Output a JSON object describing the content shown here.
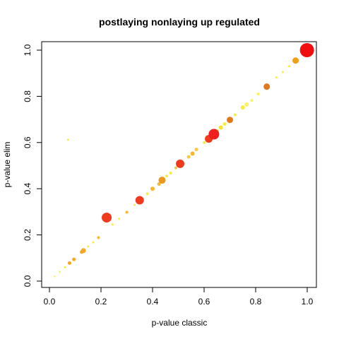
{
  "chart_data": {
    "type": "scatter",
    "title": "postlaying nonlaying up regulated",
    "xlabel": "p-value classic",
    "ylabel": "p-value elim",
    "xlim": [
      0,
      1
    ],
    "ylim": [
      0,
      1
    ],
    "xticks": [
      "0.0",
      "0.2",
      "0.4",
      "0.6",
      "0.8",
      "1.0"
    ],
    "yticks": [
      "0.0",
      "0.2",
      "0.4",
      "0.6",
      "0.8",
      "1.0"
    ],
    "grid": false,
    "legend": "none",
    "colors": {
      "red": "#f5281e",
      "red_orange": "#f04a1a",
      "orange": "#f5a623",
      "dark_orange": "#e88a10",
      "light_orange": "#f7c844",
      "yellow": "#f8ec3c",
      "pale_yellow": "#f9f25a"
    },
    "points": [
      {
        "x": 0.999,
        "y": 1.0,
        "size": 10,
        "color": "#f20e0e"
      },
      {
        "x": 0.955,
        "y": 0.955,
        "size": 4.5,
        "color": "#f0a018"
      },
      {
        "x": 0.93,
        "y": 0.93,
        "size": 1.5,
        "color": "#f8ec3c"
      },
      {
        "x": 0.905,
        "y": 0.905,
        "size": 1.5,
        "color": "#f8ec3c"
      },
      {
        "x": 0.88,
        "y": 0.882,
        "size": 1.5,
        "color": "#f8ec3c"
      },
      {
        "x": 0.843,
        "y": 0.842,
        "size": 4.5,
        "color": "#e0781a"
      },
      {
        "x": 0.81,
        "y": 0.81,
        "size": 2,
        "color": "#f9f25a"
      },
      {
        "x": 0.785,
        "y": 0.782,
        "size": 2,
        "color": "#f9f25a"
      },
      {
        "x": 0.765,
        "y": 0.765,
        "size": 3,
        "color": "#f9f25a"
      },
      {
        "x": 0.75,
        "y": 0.752,
        "size": 3,
        "color": "#f8ec3c"
      },
      {
        "x": 0.72,
        "y": 0.72,
        "size": 2,
        "color": "#f8ec3c"
      },
      {
        "x": 0.7,
        "y": 0.698,
        "size": 4.5,
        "color": "#e0781a"
      },
      {
        "x": 0.68,
        "y": 0.68,
        "size": 2.5,
        "color": "#f8ec3c"
      },
      {
        "x": 0.665,
        "y": 0.665,
        "size": 3,
        "color": "#f7e030"
      },
      {
        "x": 0.65,
        "y": 0.65,
        "size": 2.5,
        "color": "#f8ec3c"
      },
      {
        "x": 0.638,
        "y": 0.636,
        "size": 7.5,
        "color": "#f01e1e"
      },
      {
        "x": 0.63,
        "y": 0.628,
        "size": 2.5,
        "color": "#f7c844"
      },
      {
        "x": 0.618,
        "y": 0.616,
        "size": 5.5,
        "color": "#f03a1e"
      },
      {
        "x": 0.6,
        "y": 0.6,
        "size": 2,
        "color": "#f8ec3c"
      },
      {
        "x": 0.57,
        "y": 0.57,
        "size": 2.5,
        "color": "#f7c844"
      },
      {
        "x": 0.555,
        "y": 0.552,
        "size": 3,
        "color": "#f5b830"
      },
      {
        "x": 0.54,
        "y": 0.538,
        "size": 2.5,
        "color": "#f7c844"
      },
      {
        "x": 0.507,
        "y": 0.508,
        "size": 6,
        "color": "#f03a1e"
      },
      {
        "x": 0.49,
        "y": 0.49,
        "size": 2,
        "color": "#f7c844"
      },
      {
        "x": 0.47,
        "y": 0.468,
        "size": 2,
        "color": "#f8ec3c"
      },
      {
        "x": 0.455,
        "y": 0.455,
        "size": 2,
        "color": "#f8ec3c"
      },
      {
        "x": 0.437,
        "y": 0.437,
        "size": 5,
        "color": "#e8981a"
      },
      {
        "x": 0.425,
        "y": 0.42,
        "size": 2.5,
        "color": "#f5b830"
      },
      {
        "x": 0.4,
        "y": 0.4,
        "size": 3,
        "color": "#f5b830"
      },
      {
        "x": 0.38,
        "y": 0.378,
        "size": 2,
        "color": "#f8ec3c"
      },
      {
        "x": 0.35,
        "y": 0.35,
        "size": 6,
        "color": "#f03a1e"
      },
      {
        "x": 0.33,
        "y": 0.33,
        "size": 1.5,
        "color": "#f8ec3c"
      },
      {
        "x": 0.3,
        "y": 0.298,
        "size": 2,
        "color": "#f5b830"
      },
      {
        "x": 0.27,
        "y": 0.27,
        "size": 1.5,
        "color": "#f8ec3c"
      },
      {
        "x": 0.245,
        "y": 0.245,
        "size": 1.5,
        "color": "#f8ec3c"
      },
      {
        "x": 0.222,
        "y": 0.275,
        "size": 7,
        "color": "#f03a1e"
      },
      {
        "x": 0.19,
        "y": 0.188,
        "size": 2,
        "color": "#f5b830"
      },
      {
        "x": 0.17,
        "y": 0.168,
        "size": 1.5,
        "color": "#f8ec3c"
      },
      {
        "x": 0.15,
        "y": 0.15,
        "size": 1.5,
        "color": "#f8ec3c"
      },
      {
        "x": 0.132,
        "y": 0.132,
        "size": 3.5,
        "color": "#f5a623"
      },
      {
        "x": 0.125,
        "y": 0.126,
        "size": 2.5,
        "color": "#f5a623"
      },
      {
        "x": 0.095,
        "y": 0.094,
        "size": 2.5,
        "color": "#f5a623"
      },
      {
        "x": 0.078,
        "y": 0.078,
        "size": 2.5,
        "color": "#f5a623"
      },
      {
        "x": 0.06,
        "y": 0.06,
        "size": 1.5,
        "color": "#f8ec3c"
      },
      {
        "x": 0.04,
        "y": 0.04,
        "size": 1.5,
        "color": "#f9f25a"
      },
      {
        "x": 0.02,
        "y": 0.02,
        "size": 1.2,
        "color": "#f9f25a"
      },
      {
        "x": 0.072,
        "y": 0.612,
        "size": 1.5,
        "color": "#f8ec3c"
      }
    ]
  }
}
